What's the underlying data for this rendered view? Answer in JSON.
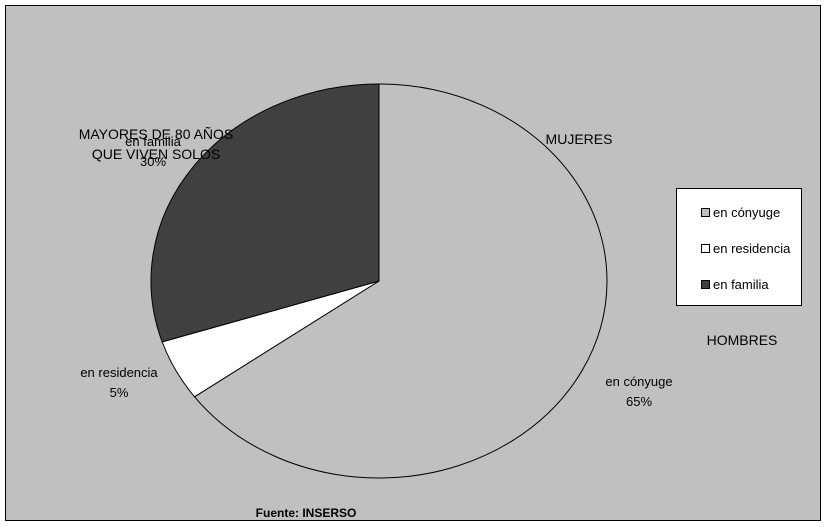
{
  "chart_data": {
    "type": "pie",
    "title": "MAYORES DE 80 AÑOS QUE VIVEN SOLOS",
    "title_lines": [
      "MAYORES DE 80 AÑOS",
      "QUE VIVEN SOLOS"
    ],
    "annotations": [
      "MUJERES",
      "HOMBRES"
    ],
    "source": "Fuente: INSERSO",
    "legend_position": "right",
    "slices": [
      {
        "label": "en cónyuge",
        "value": 65,
        "pct_label": "65%",
        "color": "#c0c0c0"
      },
      {
        "label": "en residencia",
        "value": 5,
        "pct_label": "5%",
        "color": "#ffffff"
      },
      {
        "label": "en familia",
        "value": 30,
        "pct_label": "30%",
        "color": "#404040"
      }
    ]
  }
}
